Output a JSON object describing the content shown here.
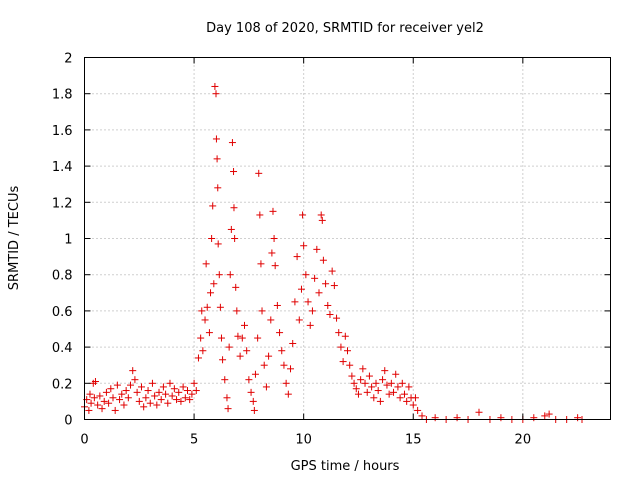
{
  "chart_data": {
    "type": "scatter",
    "title": "Day 108 of 2020, SRMTID for receiver yel2",
    "xlabel": "GPS time / hours",
    "ylabel": "SRMTID / TECUs",
    "xlim": [
      0,
      24
    ],
    "ylim": [
      0,
      2
    ],
    "xticks": [
      0,
      5,
      10,
      15,
      20
    ],
    "xtick_labels": [
      "0",
      "5",
      "10",
      "15",
      "20"
    ],
    "yticks": [
      0,
      0.2,
      0.4,
      0.6,
      0.8,
      1,
      1.2,
      1.4,
      1.6,
      1.8,
      2
    ],
    "ytick_labels": [
      "0",
      "0.2",
      "0.4",
      "0.6",
      "0.8",
      "1",
      "1.2",
      "1.4",
      "1.6",
      "1.8",
      "2"
    ],
    "grid": true,
    "marker": "+",
    "marker_color": "#e00000",
    "series": [
      {
        "name": "SRMTID",
        "points": [
          [
            0.0,
            0.07
          ],
          [
            0.1,
            0.11
          ],
          [
            0.2,
            0.05
          ],
          [
            0.25,
            0.14
          ],
          [
            0.3,
            0.09
          ],
          [
            0.4,
            0.2
          ],
          [
            0.45,
            0.12
          ],
          [
            0.5,
            0.21
          ],
          [
            0.6,
            0.08
          ],
          [
            0.7,
            0.13
          ],
          [
            0.8,
            0.06
          ],
          [
            0.9,
            0.1
          ],
          [
            1.0,
            0.15
          ],
          [
            1.1,
            0.09
          ],
          [
            1.2,
            0.17
          ],
          [
            1.3,
            0.12
          ],
          [
            1.4,
            0.05
          ],
          [
            1.5,
            0.19
          ],
          [
            1.6,
            0.11
          ],
          [
            1.7,
            0.14
          ],
          [
            1.8,
            0.08
          ],
          [
            1.9,
            0.16
          ],
          [
            2.0,
            0.12
          ],
          [
            2.1,
            0.19
          ],
          [
            2.2,
            0.27
          ],
          [
            2.3,
            0.22
          ],
          [
            2.4,
            0.15
          ],
          [
            2.5,
            0.1
          ],
          [
            2.6,
            0.18
          ],
          [
            2.7,
            0.07
          ],
          [
            2.8,
            0.12
          ],
          [
            2.9,
            0.16
          ],
          [
            3.0,
            0.09
          ],
          [
            3.1,
            0.2
          ],
          [
            3.2,
            0.13
          ],
          [
            3.3,
            0.08
          ],
          [
            3.4,
            0.15
          ],
          [
            3.5,
            0.11
          ],
          [
            3.6,
            0.18
          ],
          [
            3.7,
            0.14
          ],
          [
            3.8,
            0.09
          ],
          [
            3.9,
            0.2
          ],
          [
            4.0,
            0.13
          ],
          [
            4.1,
            0.17
          ],
          [
            4.2,
            0.11
          ],
          [
            4.3,
            0.15
          ],
          [
            4.4,
            0.1
          ],
          [
            4.5,
            0.18
          ],
          [
            4.6,
            0.12
          ],
          [
            4.7,
            0.16
          ],
          [
            4.8,
            0.11
          ],
          [
            4.9,
            0.14
          ],
          [
            5.0,
            0.2
          ],
          [
            5.1,
            0.16
          ],
          [
            5.2,
            0.34
          ],
          [
            5.3,
            0.45
          ],
          [
            5.35,
            0.6
          ],
          [
            5.4,
            0.38
          ],
          [
            5.5,
            0.55
          ],
          [
            5.55,
            0.86
          ],
          [
            5.6,
            0.62
          ],
          [
            5.7,
            0.48
          ],
          [
            5.75,
            0.7
          ],
          [
            5.8,
            1.0
          ],
          [
            5.85,
            1.18
          ],
          [
            5.9,
            0.75
          ],
          [
            5.95,
            1.84
          ],
          [
            6.0,
            1.8
          ],
          [
            6.02,
            1.55
          ],
          [
            6.05,
            1.44
          ],
          [
            6.08,
            1.28
          ],
          [
            6.1,
            0.97
          ],
          [
            6.15,
            0.8
          ],
          [
            6.2,
            0.62
          ],
          [
            6.25,
            0.45
          ],
          [
            6.3,
            0.33
          ],
          [
            6.4,
            0.22
          ],
          [
            6.5,
            0.12
          ],
          [
            6.55,
            0.06
          ],
          [
            6.6,
            0.4
          ],
          [
            6.65,
            0.8
          ],
          [
            6.7,
            1.05
          ],
          [
            6.75,
            1.53
          ],
          [
            6.8,
            1.37
          ],
          [
            6.82,
            1.17
          ],
          [
            6.85,
            1.0
          ],
          [
            6.9,
            0.73
          ],
          [
            6.95,
            0.6
          ],
          [
            7.0,
            0.46
          ],
          [
            7.1,
            0.35
          ],
          [
            7.2,
            0.45
          ],
          [
            7.3,
            0.52
          ],
          [
            7.4,
            0.38
          ],
          [
            7.5,
            0.22
          ],
          [
            7.6,
            0.15
          ],
          [
            7.7,
            0.1
          ],
          [
            7.75,
            0.05
          ],
          [
            7.8,
            0.25
          ],
          [
            7.9,
            0.45
          ],
          [
            7.95,
            1.36
          ],
          [
            8.0,
            1.13
          ],
          [
            8.05,
            0.86
          ],
          [
            8.1,
            0.6
          ],
          [
            8.2,
            0.3
          ],
          [
            8.3,
            0.18
          ],
          [
            8.4,
            0.35
          ],
          [
            8.5,
            0.55
          ],
          [
            8.55,
            0.92
          ],
          [
            8.6,
            1.15
          ],
          [
            8.65,
            1.0
          ],
          [
            8.7,
            0.85
          ],
          [
            8.8,
            0.63
          ],
          [
            8.9,
            0.48
          ],
          [
            9.0,
            0.38
          ],
          [
            9.1,
            0.3
          ],
          [
            9.2,
            0.2
          ],
          [
            9.3,
            0.14
          ],
          [
            9.4,
            0.28
          ],
          [
            9.5,
            0.42
          ],
          [
            9.6,
            0.65
          ],
          [
            9.7,
            0.9
          ],
          [
            9.8,
            0.55
          ],
          [
            9.9,
            0.72
          ],
          [
            9.95,
            1.13
          ],
          [
            10.0,
            0.96
          ],
          [
            10.1,
            0.8
          ],
          [
            10.2,
            0.65
          ],
          [
            10.3,
            0.52
          ],
          [
            10.4,
            0.6
          ],
          [
            10.5,
            0.78
          ],
          [
            10.6,
            0.94
          ],
          [
            10.7,
            0.7
          ],
          [
            10.8,
            1.13
          ],
          [
            10.85,
            1.1
          ],
          [
            10.9,
            0.88
          ],
          [
            11.0,
            0.75
          ],
          [
            11.1,
            0.63
          ],
          [
            11.2,
            0.58
          ],
          [
            11.3,
            0.82
          ],
          [
            11.4,
            0.74
          ],
          [
            11.5,
            0.56
          ],
          [
            11.6,
            0.48
          ],
          [
            11.7,
            0.4
          ],
          [
            11.8,
            0.32
          ],
          [
            11.9,
            0.46
          ],
          [
            12.0,
            0.38
          ],
          [
            12.1,
            0.3
          ],
          [
            12.2,
            0.24
          ],
          [
            12.3,
            0.2
          ],
          [
            12.4,
            0.17
          ],
          [
            12.5,
            0.14
          ],
          [
            12.6,
            0.22
          ],
          [
            12.7,
            0.28
          ],
          [
            12.8,
            0.2
          ],
          [
            12.9,
            0.15
          ],
          [
            13.0,
            0.24
          ],
          [
            13.1,
            0.18
          ],
          [
            13.2,
            0.12
          ],
          [
            13.3,
            0.2
          ],
          [
            13.4,
            0.16
          ],
          [
            13.5,
            0.1
          ],
          [
            13.6,
            0.22
          ],
          [
            13.7,
            0.27
          ],
          [
            13.8,
            0.19
          ],
          [
            13.9,
            0.14
          ],
          [
            14.0,
            0.2
          ],
          [
            14.1,
            0.15
          ],
          [
            14.2,
            0.25
          ],
          [
            14.3,
            0.18
          ],
          [
            14.4,
            0.12
          ],
          [
            14.5,
            0.2
          ],
          [
            14.6,
            0.14
          ],
          [
            14.7,
            0.1
          ],
          [
            14.8,
            0.18
          ],
          [
            14.9,
            0.12
          ],
          [
            15.0,
            0.08
          ],
          [
            15.1,
            0.12
          ],
          [
            15.2,
            0.05
          ],
          [
            15.4,
            0.02
          ],
          [
            15.6,
            0.0
          ],
          [
            16.0,
            0.01
          ],
          [
            16.5,
            0.0
          ],
          [
            17.0,
            0.01
          ],
          [
            17.5,
            0.0
          ],
          [
            18.0,
            0.04
          ],
          [
            18.5,
            0.0
          ],
          [
            19.0,
            0.01
          ],
          [
            19.5,
            0.0
          ],
          [
            20.0,
            0.0
          ],
          [
            20.5,
            0.01
          ],
          [
            21.0,
            0.02
          ],
          [
            21.2,
            0.03
          ],
          [
            21.5,
            0.0
          ],
          [
            22.0,
            0.0
          ],
          [
            22.5,
            0.01
          ],
          [
            22.7,
            0.0
          ]
        ]
      }
    ]
  }
}
